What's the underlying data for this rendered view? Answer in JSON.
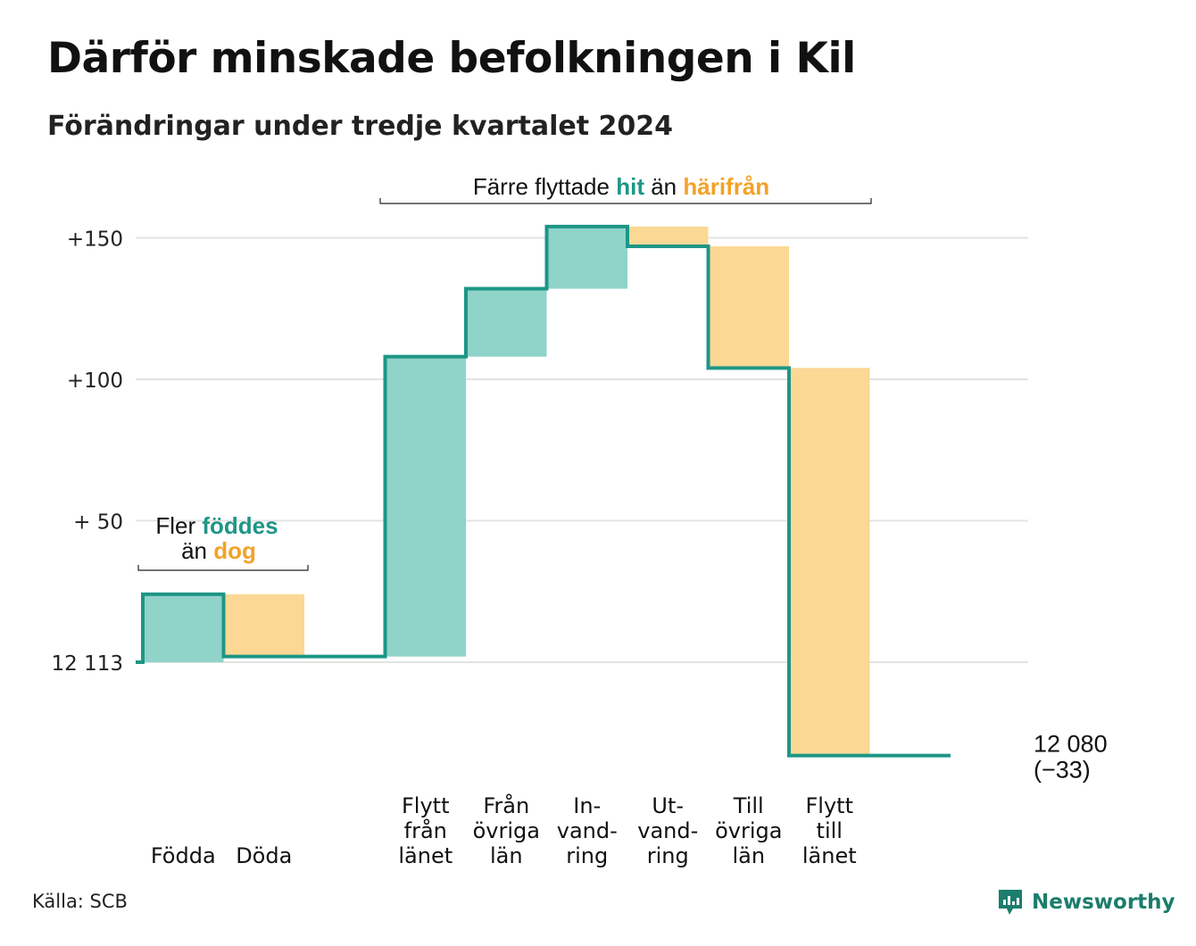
{
  "title": "Därför minskade befolkningen i Kil",
  "subtitle": "Förändringar under tredje kvartalet 2024",
  "source": "Källa: SCB",
  "brand": {
    "name": "Newsworthy",
    "icon": "newsworthy-logo-icon"
  },
  "colors": {
    "positive": "#8fd3c9",
    "negative": "#fbd894",
    "line": "#1e9686",
    "accent_hit": "#1e9686",
    "accent_harifran": "#f2a227",
    "grid": "#e3e3e3"
  },
  "annotations": {
    "birth": {
      "pre": "Fler ",
      "hl1": "föddes",
      "mid": "än ",
      "hl2": "dog"
    },
    "migration": {
      "pre": "Färre flyttade ",
      "hl1": "hit",
      "mid": " än ",
      "hl2": "härifrån"
    }
  },
  "chart_data": {
    "type": "waterfall",
    "title": "Därför minskade befolkningen i Kil",
    "subtitle": "Förändringar under tredje kvartalet 2024",
    "start_value": 12113,
    "end_value": 12080,
    "net_change": -33,
    "end_label": [
      "12 080",
      "(−33)"
    ],
    "ylim": [
      -33,
      160
    ],
    "y_ticks": [
      {
        "value": 0,
        "label": "12 113"
      },
      {
        "value": 50,
        "label": "+ 50"
      },
      {
        "value": 100,
        "label": "+100"
      },
      {
        "value": 150,
        "label": "+150"
      }
    ],
    "grid": true,
    "steps": [
      {
        "label": [
          "Födda"
        ],
        "change": 24
      },
      {
        "label": [
          "Döda"
        ],
        "change": -22
      },
      {
        "label": [],
        "change": 0
      },
      {
        "label": [
          "Flytt",
          "från",
          "länet"
        ],
        "change": 106
      },
      {
        "label": [
          "Från",
          "övriga",
          "län"
        ],
        "change": 24
      },
      {
        "label": [
          "In-",
          "vand-",
          "ring"
        ],
        "change": 22
      },
      {
        "label": [
          "Ut-",
          "vand-",
          "ring"
        ],
        "change": -7
      },
      {
        "label": [
          "Till",
          "övriga",
          "län"
        ],
        "change": -43
      },
      {
        "label": [
          "Flytt",
          "till",
          "länet"
        ],
        "change": -137
      },
      {
        "label": [],
        "change": 0
      }
    ]
  }
}
